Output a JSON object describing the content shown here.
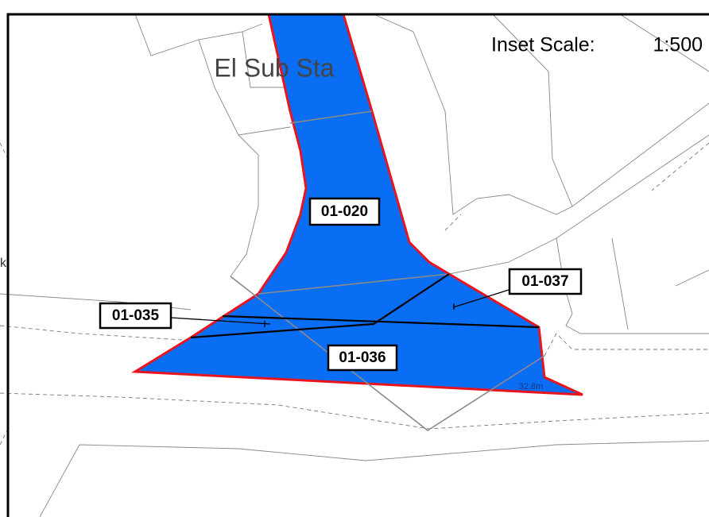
{
  "map": {
    "scale_label": "Inset Scale:",
    "scale_value": "1:500",
    "place_label": "El Sub Sta",
    "edge_label": "k",
    "parcels": [
      {
        "label": "01-020"
      },
      {
        "label": "01-035"
      },
      {
        "label": "01-036"
      },
      {
        "label": "01-037"
      }
    ],
    "dimension_label": "32.8m"
  }
}
